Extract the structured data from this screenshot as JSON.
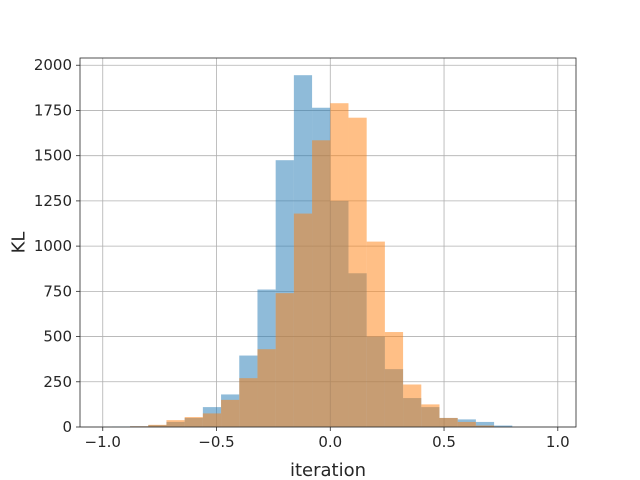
{
  "chart_data": {
    "type": "bar",
    "title": "",
    "xlabel": "iteration",
    "ylabel": "KL",
    "xlim": [
      -1.1,
      1.08
    ],
    "ylim": [
      0,
      2040
    ],
    "grid": true,
    "x_ticks": [
      -1.0,
      -0.5,
      0.0,
      0.5,
      1.0
    ],
    "x_tick_labels": [
      "−1.0",
      "−0.5",
      "0.0",
      "0.5",
      "1.0"
    ],
    "y_ticks": [
      0,
      250,
      500,
      750,
      1000,
      1250,
      1500,
      1750,
      2000
    ],
    "y_tick_labels": [
      "0",
      "250",
      "500",
      "750",
      "1000",
      "1250",
      "1500",
      "1750",
      "2000"
    ],
    "series": [
      {
        "color": "#1f77b4",
        "alpha": 0.5,
        "bins": [
          {
            "x0": -0.96,
            "x1": -0.88,
            "value": 2
          },
          {
            "x0": -0.88,
            "x1": -0.8,
            "value": 4
          },
          {
            "x0": -0.8,
            "x1": -0.72,
            "value": 10
          },
          {
            "x0": -0.72,
            "x1": -0.64,
            "value": 28
          },
          {
            "x0": -0.64,
            "x1": -0.56,
            "value": 50
          },
          {
            "x0": -0.56,
            "x1": -0.48,
            "value": 110
          },
          {
            "x0": -0.48,
            "x1": -0.4,
            "value": 180
          },
          {
            "x0": -0.4,
            "x1": -0.32,
            "value": 395
          },
          {
            "x0": -0.32,
            "x1": -0.24,
            "value": 760
          },
          {
            "x0": -0.24,
            "x1": -0.16,
            "value": 1475
          },
          {
            "x0": -0.16,
            "x1": -0.08,
            "value": 1945
          },
          {
            "x0": -0.08,
            "x1": 0.0,
            "value": 1765
          },
          {
            "x0": 0.0,
            "x1": 0.08,
            "value": 1250
          },
          {
            "x0": 0.08,
            "x1": 0.16,
            "value": 850
          },
          {
            "x0": 0.16,
            "x1": 0.24,
            "value": 500
          },
          {
            "x0": 0.24,
            "x1": 0.32,
            "value": 320
          },
          {
            "x0": 0.32,
            "x1": 0.4,
            "value": 160
          },
          {
            "x0": 0.4,
            "x1": 0.48,
            "value": 110
          },
          {
            "x0": 0.48,
            "x1": 0.56,
            "value": 50
          },
          {
            "x0": 0.56,
            "x1": 0.64,
            "value": 42
          },
          {
            "x0": 0.64,
            "x1": 0.72,
            "value": 28
          },
          {
            "x0": 0.72,
            "x1": 0.8,
            "value": 8
          }
        ]
      },
      {
        "color": "#ff7f0e",
        "alpha": 0.5,
        "bins": [
          {
            "x0": -0.88,
            "x1": -0.8,
            "value": 4
          },
          {
            "x0": -0.8,
            "x1": -0.72,
            "value": 12
          },
          {
            "x0": -0.72,
            "x1": -0.64,
            "value": 38
          },
          {
            "x0": -0.64,
            "x1": -0.56,
            "value": 55
          },
          {
            "x0": -0.56,
            "x1": -0.48,
            "value": 75
          },
          {
            "x0": -0.48,
            "x1": -0.4,
            "value": 150
          },
          {
            "x0": -0.4,
            "x1": -0.32,
            "value": 270
          },
          {
            "x0": -0.32,
            "x1": -0.24,
            "value": 430
          },
          {
            "x0": -0.24,
            "x1": -0.16,
            "value": 740
          },
          {
            "x0": -0.16,
            "x1": -0.08,
            "value": 1180
          },
          {
            "x0": -0.08,
            "x1": 0.0,
            "value": 1585
          },
          {
            "x0": 0.0,
            "x1": 0.08,
            "value": 1790
          },
          {
            "x0": 0.08,
            "x1": 0.16,
            "value": 1710
          },
          {
            "x0": 0.16,
            "x1": 0.24,
            "value": 1025
          },
          {
            "x0": 0.24,
            "x1": 0.32,
            "value": 525
          },
          {
            "x0": 0.32,
            "x1": 0.4,
            "value": 235
          },
          {
            "x0": 0.4,
            "x1": 0.48,
            "value": 125
          },
          {
            "x0": 0.48,
            "x1": 0.56,
            "value": 50
          },
          {
            "x0": 0.56,
            "x1": 0.64,
            "value": 28
          },
          {
            "x0": 0.64,
            "x1": 0.72,
            "value": 8
          }
        ]
      }
    ]
  }
}
